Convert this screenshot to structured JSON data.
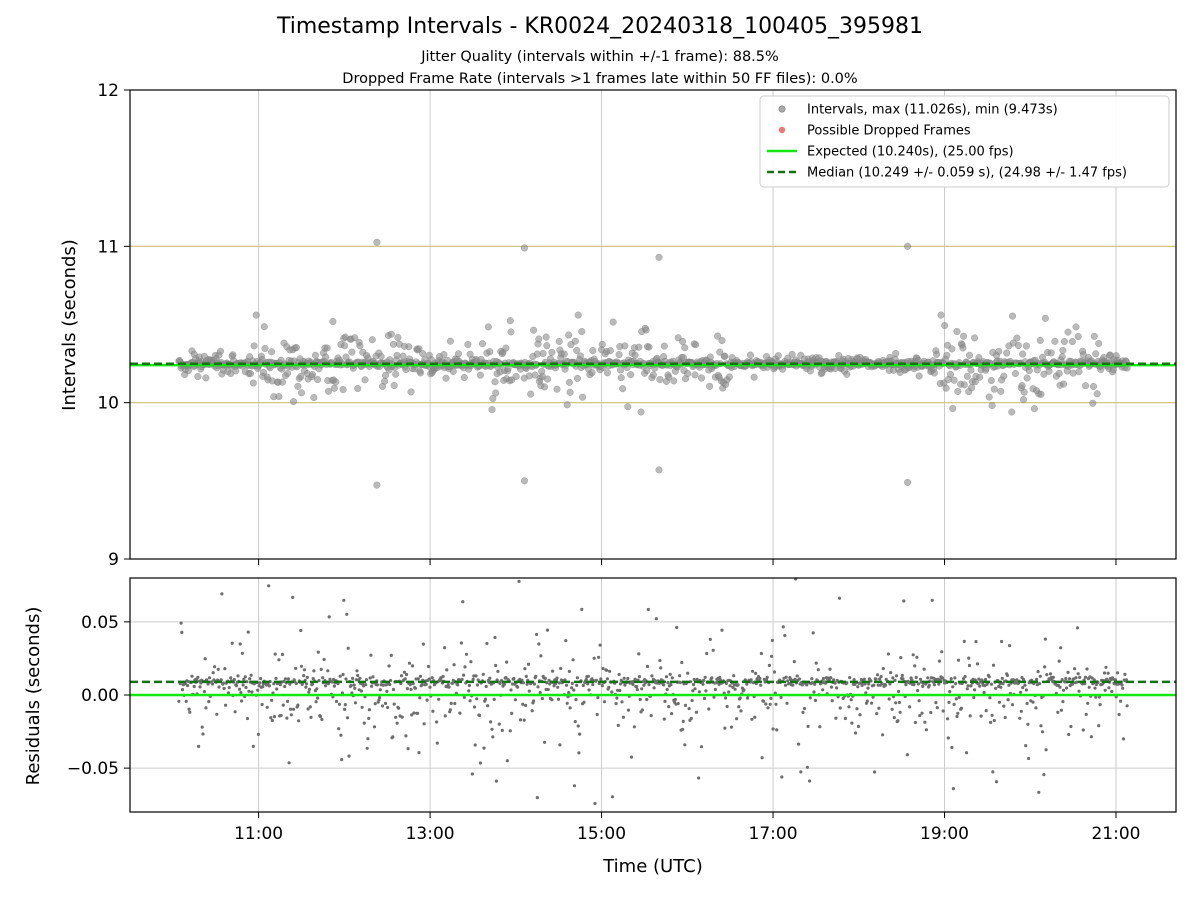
{
  "header": {
    "title": "Timestamp Intervals - KR0024_20240318_100405_395981",
    "subtitle_1": "Jitter Quality (intervals within +/-1 frame): 88.5%",
    "subtitle_2": "Dropped Frame Rate (intervals >1 frames late within 50 FF files): 0.0%"
  },
  "colors": {
    "interval_points": "#8c8c8c",
    "residual_points": "#6e6e6e",
    "dropped_frames": "#e8605a",
    "expected_line": "#14e614",
    "median_line": "#137313",
    "reference_lines": "#cbbf73",
    "grid": "#cccccc"
  },
  "chart_data": [
    {
      "type": "scatter",
      "panel": "intervals",
      "ylabel": "Intervals (seconds)",
      "ylim": [
        9,
        12
      ],
      "xlim_hours": [
        9.5,
        21.7
      ],
      "y_ticks": [
        9,
        10,
        11,
        12
      ],
      "y_tick_labels": [
        "9",
        "10",
        "11",
        "12"
      ],
      "x_ticks_hours": [
        11,
        13,
        15,
        17,
        19,
        21
      ],
      "x_tick_labels": [
        "11:00",
        "13:00",
        "15:00",
        "17:00",
        "19:00",
        "21:00"
      ],
      "grid_x": true,
      "reference_lines": [
        10,
        11
      ],
      "legend_position": "upper right",
      "legend": [
        {
          "label": "Intervals, max (11.026s), min (9.473s)",
          "kind": "marker"
        },
        {
          "label": "Possible Dropped Frames",
          "kind": "marker-red"
        },
        {
          "label": "Expected (10.240s), (25.00 fps)",
          "kind": "solid-line"
        },
        {
          "label": "Median (10.249 +/- 0.059 s), (24.98 +/- 1.47 fps)",
          "kind": "dashed-line"
        }
      ],
      "expected": 10.24,
      "median": 10.249,
      "data_range_hours": [
        10.07,
        21.13
      ],
      "outliers": [
        {
          "x": 12.38,
          "y": 11.026
        },
        {
          "x": 12.38,
          "y": 9.473
        },
        {
          "x": 14.1,
          "y": 10.99
        },
        {
          "x": 14.1,
          "y": 9.5
        },
        {
          "x": 15.67,
          "y": 10.93
        },
        {
          "x": 15.67,
          "y": 9.57
        },
        {
          "x": 18.57,
          "y": 11.0
        },
        {
          "x": 18.57,
          "y": 9.49
        }
      ]
    },
    {
      "type": "scatter",
      "panel": "residuals",
      "xlabel": "Time (UTC)",
      "ylabel": "Residuals (seconds)",
      "ylim": [
        -0.08,
        0.08
      ],
      "y_ticks": [
        -0.05,
        0.0,
        0.05
      ],
      "y_tick_labels": [
        "−0.05",
        "0.00",
        "0.05"
      ],
      "expected_residual": 0.0,
      "median_residual": 0.009,
      "grid": true
    }
  ]
}
